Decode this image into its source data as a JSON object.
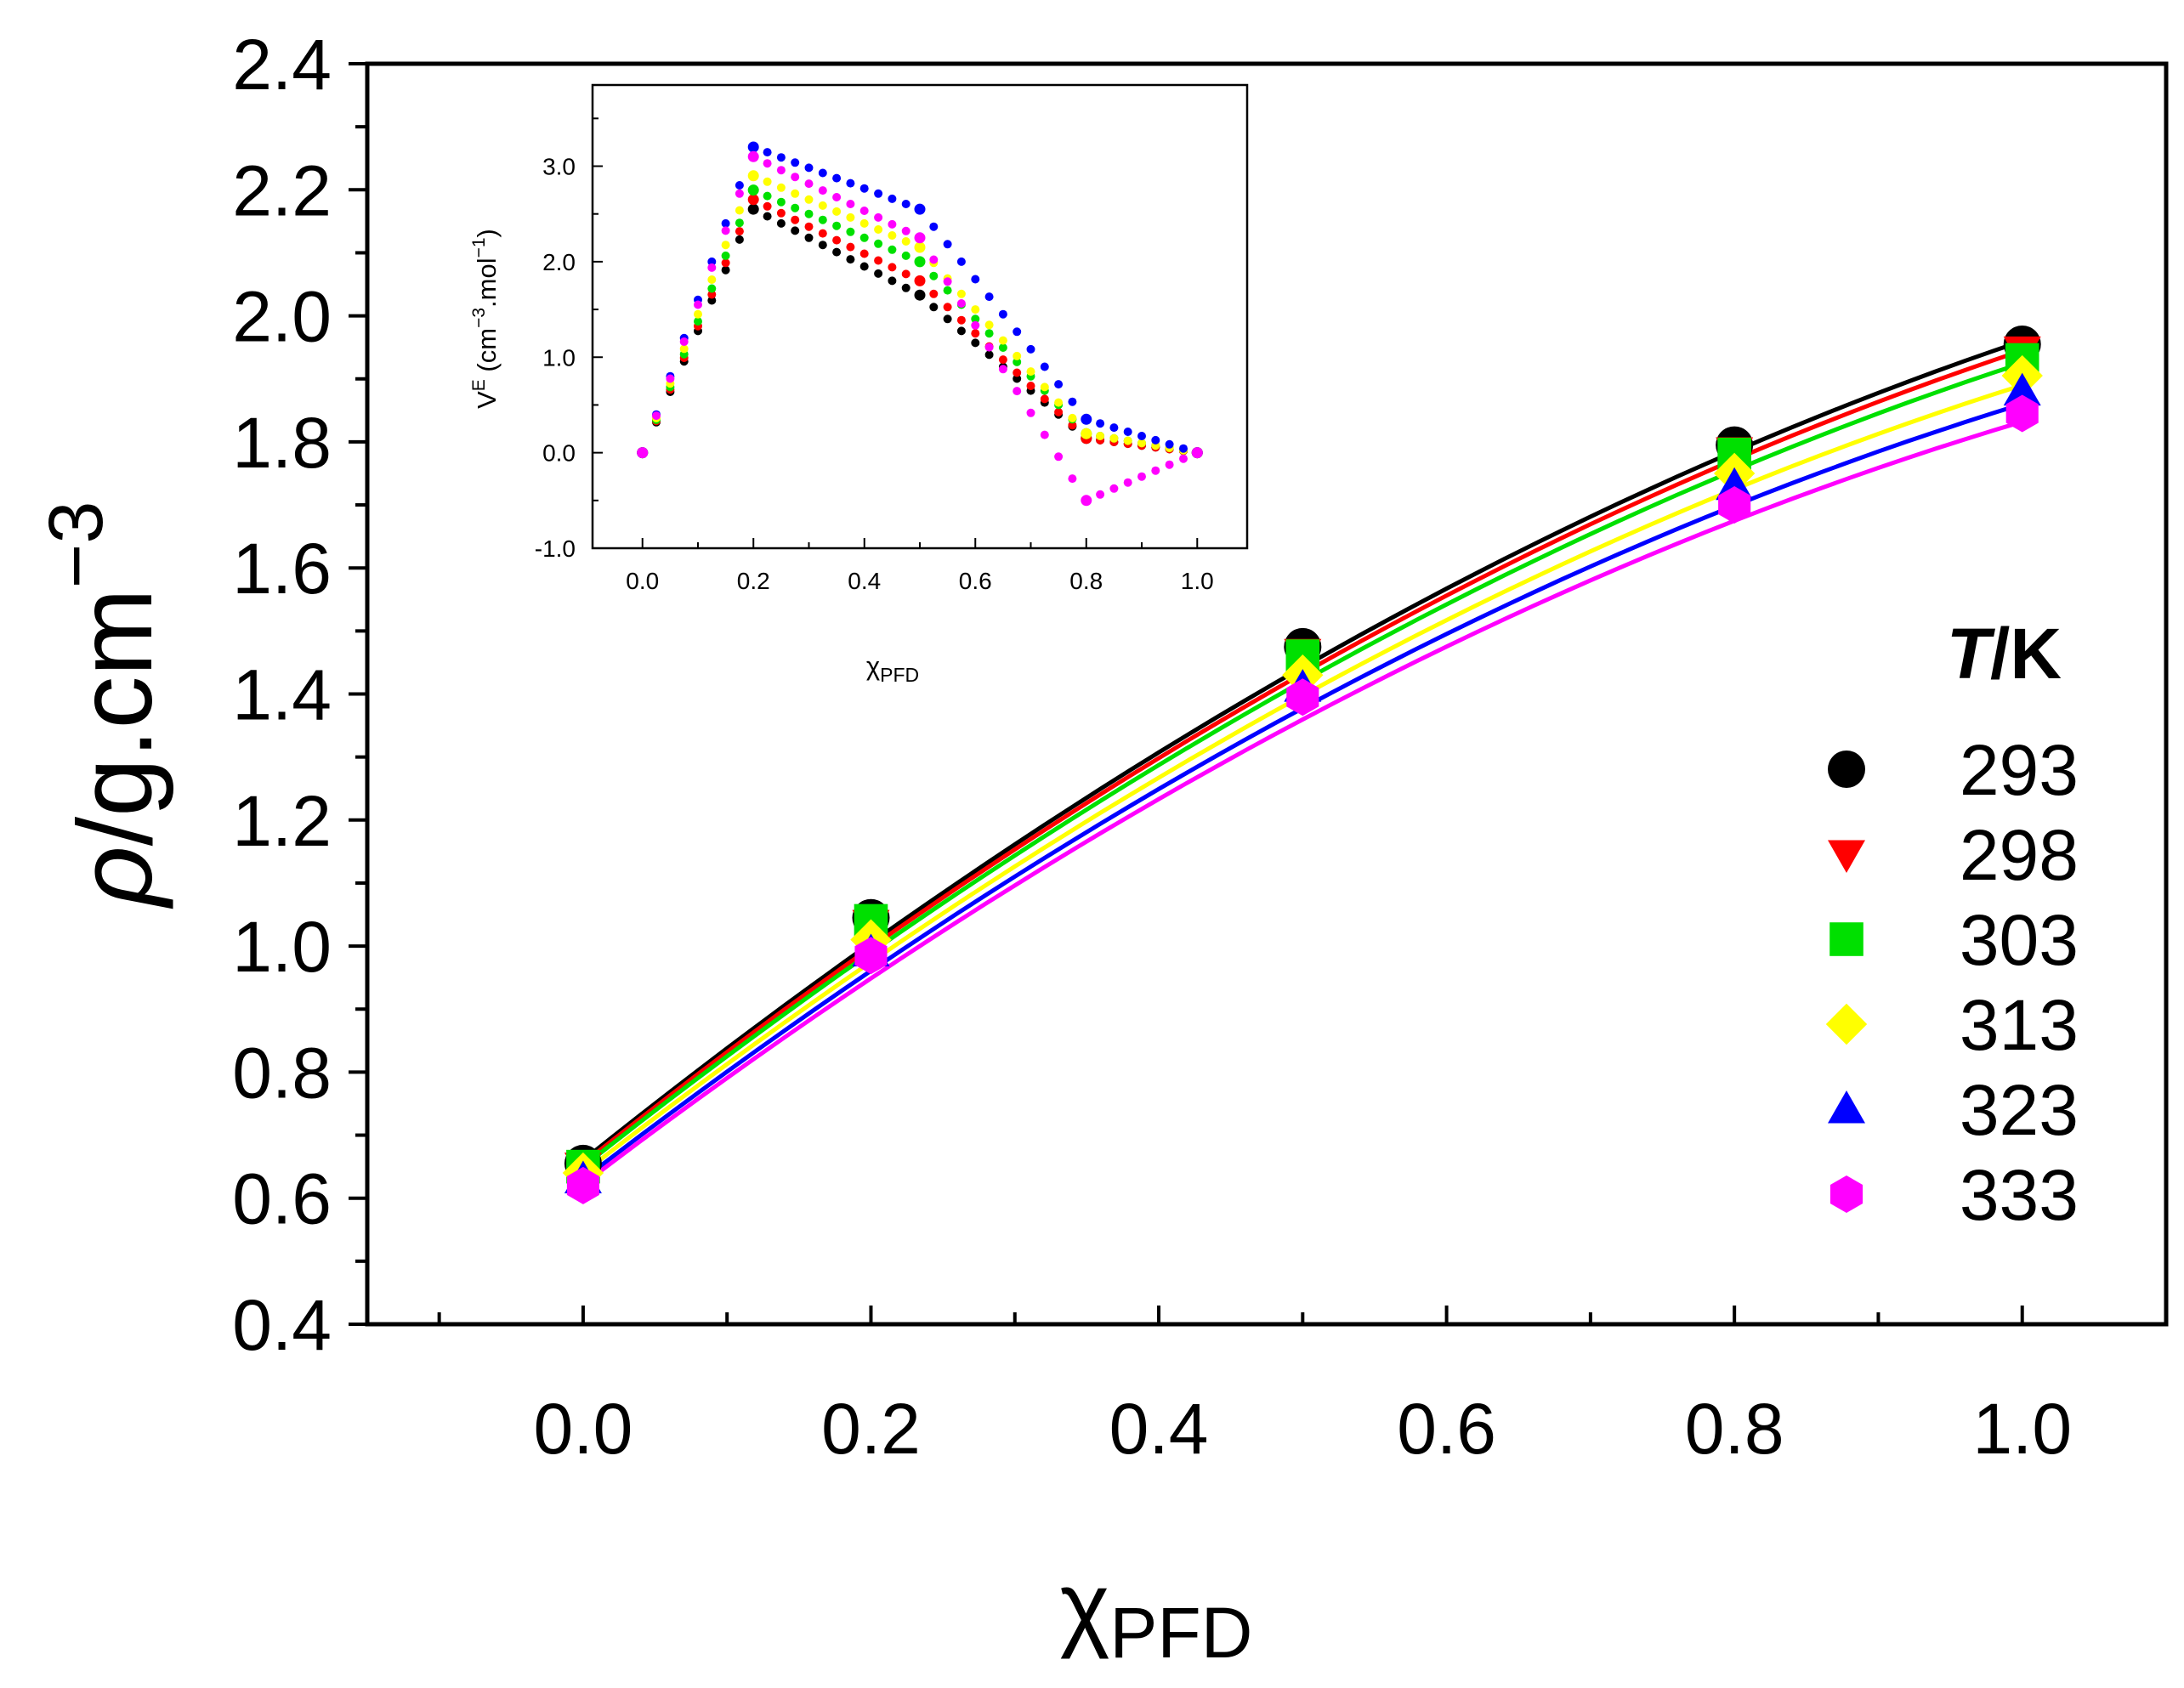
{
  "chart_data": [
    {
      "id": "main",
      "type": "scatter",
      "title": "",
      "xlabel": "χ",
      "xlabel_sub": "PFD",
      "ylabel_symbol": "ρ",
      "ylabel_text": "/g.cm",
      "ylabel_sup": "−3",
      "xlim": [
        -0.15,
        1.1
      ],
      "ylim": [
        0.4,
        2.4
      ],
      "xticks": [
        "0.0",
        "0.2",
        "0.4",
        "0.6",
        "0.8",
        "1.0"
      ],
      "yticks": [
        "0.4",
        "0.6",
        "0.8",
        "1.0",
        "1.2",
        "1.4",
        "1.6",
        "1.8",
        "2.0",
        "2.2",
        "2.4"
      ],
      "x": [
        0.0,
        0.2,
        0.5,
        0.8,
        1.0
      ],
      "legend_title_italic": "T",
      "legend_title_rest": "/K",
      "legend_position": "right",
      "series": [
        {
          "name": "293",
          "color": "#000000",
          "marker": "circle",
          "values": [
            0.655,
            1.045,
            1.475,
            1.795,
            1.955
          ]
        },
        {
          "name": "298",
          "color": "#ff0000",
          "marker": "triangle-down",
          "values": [
            0.65,
            1.035,
            1.465,
            1.785,
            1.945
          ]
        },
        {
          "name": "303",
          "color": "#00e000",
          "marker": "square",
          "values": [
            0.65,
            1.04,
            1.46,
            1.78,
            1.93
          ]
        },
        {
          "name": "313",
          "color": "#ffff00",
          "marker": "diamond",
          "values": [
            0.64,
            1.01,
            1.43,
            1.75,
            1.905
          ]
        },
        {
          "name": "323",
          "color": "#0000ff",
          "marker": "triangle-up",
          "values": [
            0.63,
            0.99,
            1.41,
            1.73,
            1.88
          ]
        },
        {
          "name": "333",
          "color": "#ff00ff",
          "marker": "hexagon",
          "values": [
            0.62,
            0.985,
            1.395,
            1.7,
            1.845
          ]
        }
      ],
      "fit_lines": [
        {
          "color": "#000000",
          "a": 0.66,
          "b": 1.83,
          "c": -0.53
        },
        {
          "color": "#ff0000",
          "a": 0.655,
          "b": 1.82,
          "c": -0.53
        },
        {
          "color": "#00e000",
          "a": 0.65,
          "b": 1.805,
          "c": -0.53
        },
        {
          "color": "#ffff00",
          "a": 0.64,
          "b": 1.78,
          "c": -0.53
        },
        {
          "color": "#0000ff",
          "a": 0.63,
          "b": 1.76,
          "c": -0.53
        },
        {
          "color": "#ff00ff",
          "a": 0.622,
          "b": 1.74,
          "c": -0.53
        }
      ]
    },
    {
      "id": "inset",
      "type": "scatter",
      "title": "",
      "xlabel": "χ",
      "xlabel_sub": "PFD",
      "ylabel": "V",
      "ylabel_sup1": "E",
      "ylabel_mid": " (cm",
      "ylabel_sup2": "−3",
      "ylabel_mid2": ".mol",
      "ylabel_sup3": "−1",
      "ylabel_end": ")",
      "xlim": [
        -0.09,
        1.09
      ],
      "ylim": [
        -1.0,
        3.85
      ],
      "xticks": [
        "0.0",
        "0.2",
        "0.4",
        "0.6",
        "0.8",
        "1.0"
      ],
      "yticks": [
        "-1.0",
        "0.0",
        "1.0",
        "2.0",
        "3.0"
      ],
      "x": [
        0.0,
        0.2,
        0.5,
        0.8,
        1.0
      ],
      "series": [
        {
          "name": "293",
          "color": "#000000",
          "values": [
            0.0,
            2.55,
            1.65,
            0.15,
            0.0
          ]
        },
        {
          "name": "298",
          "color": "#ff0000",
          "values": [
            0.0,
            2.65,
            1.8,
            0.15,
            0.0
          ]
        },
        {
          "name": "303",
          "color": "#00e000",
          "values": [
            0.0,
            2.75,
            2.0,
            0.2,
            0.0
          ]
        },
        {
          "name": "313",
          "color": "#ffff00",
          "values": [
            0.0,
            2.9,
            2.15,
            0.2,
            0.0
          ]
        },
        {
          "name": "323",
          "color": "#0000ff",
          "values": [
            0.0,
            3.2,
            2.55,
            0.35,
            0.0
          ]
        },
        {
          "name": "333",
          "color": "#ff00ff",
          "values": [
            0.0,
            3.1,
            2.25,
            -0.5,
            0.0
          ]
        }
      ]
    }
  ]
}
